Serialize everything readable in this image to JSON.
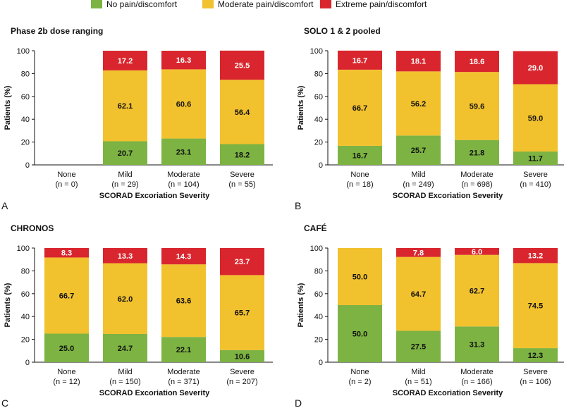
{
  "legend": {
    "items": [
      {
        "label": "No pain/discomfort",
        "color": "#7cb342"
      },
      {
        "label": "Moderate pain/discomfort",
        "color": "#f2c12e"
      },
      {
        "label": "Extreme pain/discomfort",
        "color": "#d9262e"
      }
    ]
  },
  "chart_data": [
    {
      "type": "bar",
      "stacked": true,
      "letter": "A",
      "title": "Phase 2b dose ranging",
      "xlabel": "SCORAD Excoriation Severity",
      "ylabel": "Patients (%)",
      "ylim": [
        0,
        100
      ],
      "yticks": [
        0,
        20,
        40,
        60,
        80,
        100
      ],
      "categories": [
        "None",
        "Mild",
        "Moderate",
        "Severe"
      ],
      "n_labels": [
        "(n = 0)",
        "(n = 29)",
        "(n = 104)",
        "(n = 55)"
      ],
      "series": [
        {
          "name": "No pain/discomfort",
          "values": [
            null,
            20.7,
            23.1,
            18.2
          ]
        },
        {
          "name": "Moderate pain/discomfort",
          "values": [
            null,
            62.1,
            60.6,
            56.4
          ]
        },
        {
          "name": "Extreme pain/discomfort",
          "values": [
            null,
            17.2,
            16.3,
            25.5
          ]
        }
      ]
    },
    {
      "type": "bar",
      "stacked": true,
      "letter": "B",
      "title": "SOLO 1 & 2 pooled",
      "xlabel": "SCORAD Excoriation Severity",
      "ylabel": "Patients (%)",
      "ylim": [
        0,
        100
      ],
      "yticks": [
        0,
        20,
        40,
        60,
        80,
        100
      ],
      "categories": [
        "None",
        "Mild",
        "Moderate",
        "Severe"
      ],
      "n_labels": [
        "(n = 18)",
        "(n = 249)",
        "(n = 698)",
        "(n = 410)"
      ],
      "series": [
        {
          "name": "No pain/discomfort",
          "values": [
            16.7,
            25.7,
            21.8,
            11.7
          ]
        },
        {
          "name": "Moderate pain/discomfort",
          "values": [
            66.7,
            56.2,
            59.6,
            59.0
          ]
        },
        {
          "name": "Extreme pain/discomfort",
          "values": [
            16.7,
            18.1,
            18.6,
            29.0
          ]
        }
      ]
    },
    {
      "type": "bar",
      "stacked": true,
      "letter": "C",
      "title": "CHRONOS",
      "xlabel": "SCORAD Excoriation Severity",
      "ylabel": "Patients (%)",
      "ylim": [
        0,
        100
      ],
      "yticks": [
        0,
        20,
        40,
        60,
        80,
        100
      ],
      "categories": [
        "None",
        "Mild",
        "Moderate",
        "Severe"
      ],
      "n_labels": [
        "(n = 12)",
        "(n = 150)",
        "(n = 371)",
        "(n = 207)"
      ],
      "series": [
        {
          "name": "No pain/discomfort",
          "values": [
            25.0,
            24.7,
            22.1,
            10.6
          ]
        },
        {
          "name": "Moderate pain/discomfort",
          "values": [
            66.7,
            62.0,
            63.6,
            65.7
          ]
        },
        {
          "name": "Extreme pain/discomfort",
          "values": [
            8.3,
            13.3,
            14.3,
            23.7
          ]
        }
      ]
    },
    {
      "type": "bar",
      "stacked": true,
      "letter": "D",
      "title": "CAFÉ",
      "xlabel": "SCORAD Excoriation Severity",
      "ylabel": "Patients (%)",
      "ylim": [
        0,
        100
      ],
      "yticks": [
        0,
        20,
        40,
        60,
        80,
        100
      ],
      "categories": [
        "None",
        "Mild",
        "Moderate",
        "Severe"
      ],
      "n_labels": [
        "(n = 2)",
        "(n = 51)",
        "(n = 166)",
        "(n = 106)"
      ],
      "series": [
        {
          "name": "No pain/discomfort",
          "values": [
            50.0,
            27.5,
            31.3,
            12.3
          ]
        },
        {
          "name": "Moderate pain/discomfort",
          "values": [
            50.0,
            64.7,
            62.7,
            74.5
          ]
        },
        {
          "name": "Extreme pain/discomfort",
          "values": [
            null,
            7.8,
            6.0,
            13.2
          ]
        }
      ]
    }
  ]
}
